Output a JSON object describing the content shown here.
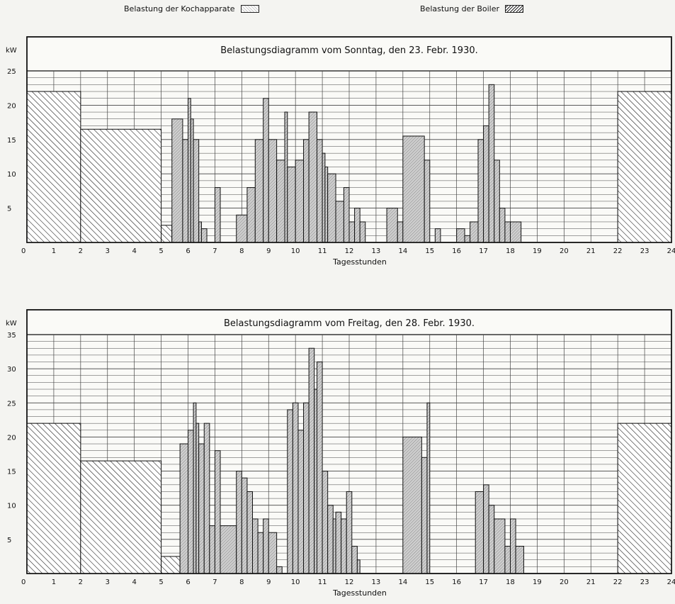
{
  "legend": {
    "kochapparate": "Belastung der Kochapparate",
    "boiler": "Belastung der Boiler"
  },
  "colors": {
    "ink": "#111111",
    "paper": "#f4f4f1",
    "cooking_fill": "#cfcfcf"
  },
  "chart_data": [
    {
      "type": "bar",
      "title": "Belastungsdiagramm vom Sonntag, den 23. Febr. 1930.",
      "xlabel": "Tagesstunden",
      "ylabel": "kW",
      "xlim": [
        0,
        24
      ],
      "ylim": [
        0,
        25
      ],
      "x_ticks": [
        "0",
        "1",
        "2",
        "3",
        "4",
        "5",
        "6",
        "7",
        "8",
        "9",
        "10",
        "11",
        "12",
        "13",
        "14",
        "15",
        "16",
        "17",
        "18",
        "19",
        "20",
        "21",
        "22",
        "23",
        "24"
      ],
      "y_ticks": [
        5,
        10,
        15,
        20,
        25
      ],
      "grid": true,
      "series": [
        {
          "name": "Belastung der Boiler",
          "pattern": "hatch-dense",
          "steps": [
            [
              0,
              2,
              22
            ],
            [
              2,
              5,
              16.5
            ],
            [
              5,
              5.4,
              2.5
            ],
            [
              5.4,
              6.4,
              2.5
            ],
            [
              22,
              24,
              22
            ]
          ]
        },
        {
          "name": "Belastung der Kochapparate",
          "pattern": "hatch-light",
          "steps": [
            [
              5.4,
              5.8,
              18
            ],
            [
              5.8,
              6.0,
              15
            ],
            [
              6.0,
              6.1,
              21
            ],
            [
              6.1,
              6.2,
              18
            ],
            [
              6.2,
              6.4,
              15
            ],
            [
              6.4,
              6.5,
              3
            ],
            [
              6.5,
              6.7,
              2
            ],
            [
              7.0,
              7.2,
              8
            ],
            [
              7.8,
              8.2,
              4
            ],
            [
              8.2,
              8.5,
              8
            ],
            [
              8.5,
              8.8,
              15
            ],
            [
              8.8,
              9.0,
              21
            ],
            [
              9.0,
              9.3,
              15
            ],
            [
              9.3,
              9.6,
              12
            ],
            [
              9.6,
              9.7,
              19
            ],
            [
              9.7,
              10.0,
              11
            ],
            [
              10.0,
              10.3,
              12
            ],
            [
              10.3,
              10.5,
              15
            ],
            [
              10.5,
              10.8,
              19
            ],
            [
              10.8,
              11.0,
              15
            ],
            [
              11.0,
              11.1,
              13
            ],
            [
              11.1,
              11.2,
              11
            ],
            [
              11.2,
              11.5,
              10
            ],
            [
              11.5,
              11.8,
              6
            ],
            [
              11.8,
              12.0,
              8
            ],
            [
              12.0,
              12.2,
              3
            ],
            [
              12.2,
              12.4,
              5
            ],
            [
              12.4,
              12.6,
              3
            ],
            [
              13.4,
              13.8,
              5
            ],
            [
              13.8,
              14.0,
              3
            ],
            [
              14.0,
              14.8,
              15.5
            ],
            [
              14.8,
              15.0,
              12
            ],
            [
              15.2,
              15.4,
              2
            ],
            [
              16.0,
              16.3,
              2
            ],
            [
              16.3,
              16.5,
              1
            ],
            [
              16.5,
              16.8,
              3
            ],
            [
              16.8,
              17.0,
              15
            ],
            [
              17.0,
              17.2,
              17
            ],
            [
              17.2,
              17.4,
              23
            ],
            [
              17.4,
              17.6,
              12
            ],
            [
              17.6,
              17.8,
              5
            ],
            [
              17.8,
              18.0,
              3
            ],
            [
              18.0,
              18.4,
              3
            ]
          ]
        }
      ]
    },
    {
      "type": "bar",
      "title": "Belastungsdiagramm vom Freitag, den 28. Febr. 1930.",
      "xlabel": "Tagesstunden",
      "ylabel": "kW",
      "xlim": [
        0,
        24
      ],
      "ylim": [
        0,
        35
      ],
      "x_ticks": [
        "0",
        "1",
        "2",
        "3",
        "4",
        "5",
        "6",
        "7",
        "8",
        "9",
        "10",
        "11",
        "12",
        "13",
        "14",
        "15",
        "16",
        "17",
        "18",
        "19",
        "20",
        "21",
        "22",
        "23",
        "24"
      ],
      "y_ticks": [
        5,
        10,
        15,
        20,
        25,
        30,
        35
      ],
      "grid": true,
      "series": [
        {
          "name": "Belastung der Boiler",
          "pattern": "hatch-dense",
          "steps": [
            [
              0,
              2,
              22
            ],
            [
              2,
              5,
              16.5
            ],
            [
              5,
              5.7,
              2.5
            ],
            [
              5.7,
              6.5,
              2.5
            ],
            [
              22,
              24,
              22
            ]
          ]
        },
        {
          "name": "Belastung der Kochapparate",
          "pattern": "hatch-light",
          "steps": [
            [
              5.7,
              6.0,
              19
            ],
            [
              6.0,
              6.2,
              21
            ],
            [
              6.2,
              6.3,
              25
            ],
            [
              6.3,
              6.4,
              22
            ],
            [
              6.4,
              6.6,
              19
            ],
            [
              6.6,
              6.8,
              22
            ],
            [
              6.8,
              7.0,
              7
            ],
            [
              7.0,
              7.2,
              18
            ],
            [
              7.2,
              7.8,
              7
            ],
            [
              7.8,
              8.0,
              15
            ],
            [
              8.0,
              8.2,
              14
            ],
            [
              8.2,
              8.4,
              12
            ],
            [
              8.4,
              8.6,
              8
            ],
            [
              8.6,
              8.8,
              6
            ],
            [
              8.8,
              9.0,
              8
            ],
            [
              9.0,
              9.3,
              6
            ],
            [
              9.3,
              9.5,
              1
            ],
            [
              9.7,
              9.9,
              24
            ],
            [
              9.9,
              10.1,
              25
            ],
            [
              10.1,
              10.3,
              21
            ],
            [
              10.3,
              10.5,
              25
            ],
            [
              10.5,
              10.7,
              33
            ],
            [
              10.7,
              10.8,
              27
            ],
            [
              10.8,
              11.0,
              31
            ],
            [
              11.0,
              11.2,
              15
            ],
            [
              11.2,
              11.4,
              10
            ],
            [
              11.4,
              11.5,
              8
            ],
            [
              11.5,
              11.7,
              9
            ],
            [
              11.7,
              11.9,
              8
            ],
            [
              11.9,
              12.1,
              12
            ],
            [
              12.1,
              12.3,
              4
            ],
            [
              12.3,
              12.4,
              2
            ],
            [
              14.0,
              14.7,
              20
            ],
            [
              14.7,
              14.9,
              17
            ],
            [
              14.9,
              15.0,
              25
            ],
            [
              16.7,
              17.0,
              12
            ],
            [
              17.0,
              17.2,
              13
            ],
            [
              17.2,
              17.4,
              10
            ],
            [
              17.4,
              17.8,
              8
            ],
            [
              17.8,
              18.0,
              4
            ],
            [
              18.0,
              18.2,
              8
            ],
            [
              18.2,
              18.5,
              4
            ]
          ]
        }
      ]
    }
  ]
}
